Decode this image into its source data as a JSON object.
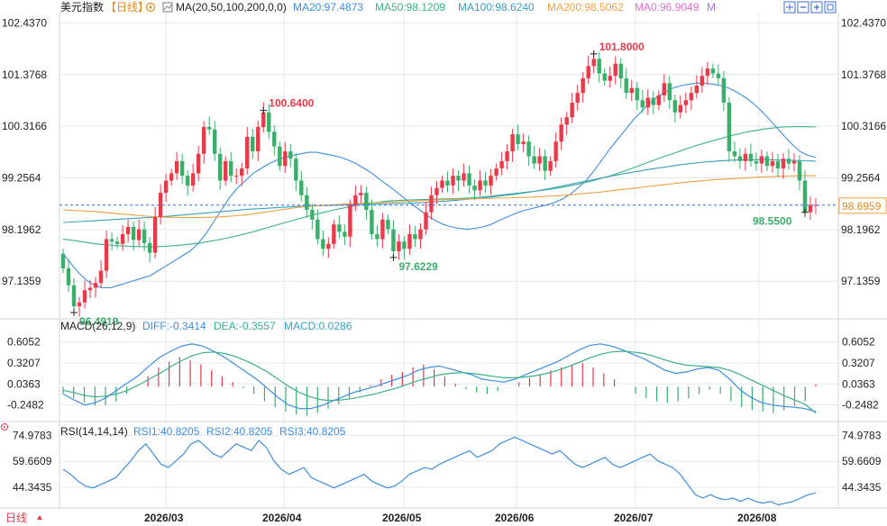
{
  "header": {
    "title": "美元指数",
    "period_tag": "【日线】",
    "ma_label": "MA(20,50,100,200,0,0)",
    "ma_items": [
      {
        "label": "MA20:97.4873",
        "color": "#3d8ee0"
      },
      {
        "label": "MA50:98.1209",
        "color": "#3ab08a"
      },
      {
        "label": "MA100:98.6240",
        "color": "#3aa0c0"
      },
      {
        "label": "MA200:98.5062",
        "color": "#f0a040"
      },
      {
        "label": "MA0:96.9049",
        "color": "#e070d0"
      },
      {
        "label": "M",
        "color": "#b070e0"
      }
    ],
    "tool_icons": [
      "crosshair-icon",
      "minus-icon",
      "plus-icon",
      "fit-icon"
    ]
  },
  "colors": {
    "up": "#e83a4a",
    "down": "#3aae6a",
    "ma20": "#3d8ee0",
    "ma50": "#3ab08a",
    "ma100": "#3aa0c0",
    "ma200": "#f0a040",
    "diff": "#3d8ee0",
    "dea": "#3ab08a",
    "rsi": "#3d8ee0",
    "grid": "#e4e8ee"
  },
  "main_axis": {
    "ticks": [
      "102.4370",
      "101.3768",
      "100.3166",
      "99.2564",
      "98.1962",
      "97.1359"
    ],
    "current_price": "98.6959"
  },
  "annotations": [
    {
      "text": "100.6400",
      "type": "high"
    },
    {
      "text": "101.8000",
      "type": "high"
    },
    {
      "text": "96.4919",
      "type": "low"
    },
    {
      "text": "97.6229",
      "type": "low"
    },
    {
      "text": "98.5500",
      "type": "low"
    }
  ],
  "macd": {
    "label": "MACD(26,12,9)",
    "diff": "DIFF:-0.3414",
    "dea": "DEA:-0.3557",
    "macd": "MACD:0.0286",
    "ticks": [
      "0.6052",
      "0.3207",
      "0.0363",
      "-0.2482"
    ]
  },
  "rsi": {
    "label": "RSI(14,14,14)",
    "rsi1": "RSI1:40.8205",
    "rsi2": "RSI2:40.8205",
    "rsi3": "RSI3:40.8205",
    "ticks": [
      "74.9783",
      "59.6609",
      "44.3435"
    ]
  },
  "footer": {
    "period_button": "日线",
    "months": [
      "2026/03",
      "2026/04",
      "2026/05",
      "2026/06",
      "2026/07",
      "2026/08"
    ]
  },
  "chart_data": {
    "type": "candlestick",
    "x_range": [
      "2026/02",
      "2026/08"
    ],
    "ylim": [
      96.4,
      102.5
    ],
    "closes": [
      97.4,
      97.05,
      96.62,
      96.7,
      96.95,
      97.0,
      97.1,
      97.35,
      98.0,
      97.95,
      97.9,
      98.1,
      98.25,
      97.98,
      98.2,
      97.92,
      97.72,
      98.45,
      98.95,
      99.2,
      99.35,
      99.6,
      99.3,
      99.1,
      99.35,
      99.75,
      100.3,
      100.25,
      99.75,
      99.2,
      99.6,
      99.3,
      99.3,
      99.45,
      100.1,
      99.8,
      100.3,
      100.6,
      100.2,
      99.9,
      99.5,
      99.8,
      99.65,
      99.2,
      98.9,
      98.6,
      98.4,
      98.0,
      97.8,
      97.9,
      98.3,
      98.15,
      98.05,
      98.7,
      98.9,
      98.95,
      98.6,
      98.1,
      98.0,
      98.4,
      98.2,
      97.75,
      97.95,
      97.8,
      98.1,
      98.0,
      98.2,
      98.55,
      98.9,
      99.05,
      99.2,
      99.1,
      99.3,
      99.2,
      99.35,
      99.1,
      99.0,
      99.2,
      99.1,
      99.3,
      99.45,
      99.6,
      99.8,
      100.15,
      99.95,
      100.0,
      99.7,
      99.55,
      99.7,
      99.4,
      99.6,
      100.0,
      100.35,
      100.5,
      100.8,
      101.0,
      101.3,
      101.55,
      101.7,
      101.4,
      101.25,
      101.35,
      101.6,
      101.3,
      101.0,
      101.1,
      100.85,
      100.7,
      100.9,
      100.75,
      100.95,
      101.2,
      100.85,
      100.6,
      100.75,
      100.85,
      101.0,
      101.15,
      101.35,
      101.5,
      101.4,
      101.3,
      100.8,
      99.8,
      99.7,
      99.6,
      99.75,
      99.6,
      99.55,
      99.7,
      99.5,
      99.6,
      99.45,
      99.65,
      99.55,
      99.6,
      99.2,
      98.55,
      98.7,
      98.7
    ],
    "ma20": [
      97.7,
      97.5,
      97.3,
      97.15,
      97.05,
      97.0,
      97.0,
      97.05,
      97.1,
      97.15,
      97.2,
      97.25,
      97.35,
      97.45,
      97.55,
      97.65,
      97.75,
      97.9,
      98.1,
      98.35,
      98.6,
      98.85,
      99.05,
      99.2,
      99.35,
      99.45,
      99.55,
      99.62,
      99.68,
      99.72,
      99.75,
      99.78,
      99.78,
      99.75,
      99.72,
      99.68,
      99.62,
      99.55,
      99.45,
      99.35,
      99.22,
      99.1,
      98.98,
      98.85,
      98.72,
      98.6,
      98.48,
      98.38,
      98.3,
      98.25,
      98.22,
      98.2,
      98.22,
      98.25,
      98.3,
      98.38,
      98.45,
      98.52,
      98.58,
      98.62,
      98.66,
      98.7,
      98.75,
      98.82,
      98.92,
      99.05,
      99.2,
      99.4,
      99.62,
      99.85,
      100.05,
      100.25,
      100.45,
      100.62,
      100.78,
      100.92,
      101.02,
      101.1,
      101.15,
      101.18,
      101.2,
      101.2,
      101.18,
      101.15,
      101.1,
      101.02,
      100.92,
      100.8,
      100.65,
      100.48,
      100.3,
      100.12,
      99.95,
      99.8,
      99.72,
      99.68
    ],
    "ma50": [
      98.0,
      97.95,
      97.9,
      97.87,
      97.85,
      97.84,
      97.85,
      97.88,
      97.92,
      97.98,
      98.05,
      98.14,
      98.24,
      98.34,
      98.44,
      98.53,
      98.61,
      98.68,
      98.74,
      98.78,
      98.8,
      98.81,
      98.82,
      98.83,
      98.85,
      98.88,
      98.92,
      98.96,
      99.0,
      99.05,
      99.12,
      99.2,
      99.3,
      99.42,
      99.55,
      99.68,
      99.8,
      99.92,
      100.02,
      100.12,
      100.2,
      100.26,
      100.3,
      100.31,
      100.3
    ],
    "ma100": [
      98.34,
      98.36,
      98.38,
      98.4,
      98.42,
      98.44,
      98.46,
      98.49,
      98.52,
      98.55,
      98.58,
      98.61,
      98.63,
      98.65,
      98.67,
      98.68,
      98.69,
      98.7,
      98.71,
      98.72,
      98.73,
      98.74,
      98.76,
      98.78,
      98.81,
      98.84,
      98.88,
      98.92,
      98.97,
      99.03,
      99.1,
      99.17,
      99.24,
      99.31,
      99.37,
      99.43,
      99.48,
      99.53,
      99.57,
      99.6,
      99.62,
      99.63,
      99.63,
      99.62,
      99.61,
      99.6
    ],
    "ma200": [
      98.6,
      98.58,
      98.56,
      98.53,
      98.5,
      98.47,
      98.45,
      98.44,
      98.44,
      98.45,
      98.47,
      98.5,
      98.55,
      98.6,
      98.65,
      98.68,
      98.7,
      98.72,
      98.74,
      98.75,
      98.76,
      98.78,
      98.8,
      98.81,
      98.82,
      98.83,
      98.84,
      98.85,
      98.86,
      98.88,
      98.9,
      98.93,
      98.96,
      99.0,
      99.04,
      99.08,
      99.12,
      99.16,
      99.19,
      99.22,
      99.24,
      99.26,
      99.28,
      99.29,
      99.3,
      99.3
    ],
    "macd_range": [
      -0.45,
      0.7
    ],
    "macd_diff": [
      -0.1,
      -0.18,
      -0.25,
      -0.22,
      -0.15,
      -0.05,
      0.05,
      0.15,
      0.28,
      0.4,
      0.48,
      0.55,
      0.58,
      0.55,
      0.48,
      0.4,
      0.3,
      0.2,
      0.1,
      -0.02,
      -0.15,
      -0.25,
      -0.3,
      -0.3,
      -0.26,
      -0.2,
      -0.14,
      -0.08,
      -0.04,
      0.0,
      0.05,
      0.1,
      0.15,
      0.22,
      0.26,
      0.28,
      0.24,
      0.2,
      0.16,
      0.1,
      0.08,
      0.06,
      0.1,
      0.16,
      0.22,
      0.28,
      0.34,
      0.42,
      0.5,
      0.56,
      0.58,
      0.55,
      0.5,
      0.44,
      0.38,
      0.3,
      0.22,
      0.18,
      0.2,
      0.24,
      0.26,
      0.22,
      0.1,
      -0.05,
      -0.15,
      -0.22,
      -0.25,
      -0.27,
      -0.28,
      -0.3,
      -0.34
    ],
    "macd_dea": [
      -0.05,
      -0.08,
      -0.12,
      -0.14,
      -0.13,
      -0.1,
      -0.05,
      0.02,
      0.1,
      0.18,
      0.27,
      0.35,
      0.42,
      0.46,
      0.47,
      0.45,
      0.41,
      0.35,
      0.28,
      0.2,
      0.1,
      0.0,
      -0.08,
      -0.14,
      -0.18,
      -0.19,
      -0.18,
      -0.16,
      -0.13,
      -0.1,
      -0.06,
      -0.02,
      0.03,
      0.08,
      0.12,
      0.16,
      0.18,
      0.19,
      0.18,
      0.16,
      0.14,
      0.12,
      0.12,
      0.13,
      0.15,
      0.18,
      0.22,
      0.27,
      0.33,
      0.39,
      0.44,
      0.47,
      0.48,
      0.47,
      0.45,
      0.41,
      0.36,
      0.32,
      0.29,
      0.28,
      0.27,
      0.26,
      0.22,
      0.16,
      0.09,
      0.02,
      -0.05,
      -0.12,
      -0.18,
      -0.24,
      -0.36
    ],
    "macd_hist": [
      -0.1,
      -0.16,
      -0.22,
      -0.26,
      -0.25,
      -0.2,
      -0.1,
      0.0,
      0.14,
      0.26,
      0.34,
      0.4,
      0.36,
      0.3,
      0.22,
      0.14,
      0.06,
      -0.02,
      -0.1,
      -0.2,
      -0.28,
      -0.34,
      -0.38,
      -0.4,
      -0.36,
      -0.3,
      -0.24,
      -0.16,
      -0.08,
      0.02,
      0.1,
      0.16,
      0.2,
      0.26,
      0.3,
      0.24,
      0.14,
      0.04,
      -0.04,
      -0.08,
      -0.1,
      -0.06,
      0.0,
      0.06,
      0.12,
      0.16,
      0.22,
      0.26,
      0.3,
      0.32,
      0.26,
      0.18,
      0.1,
      0.0,
      -0.1,
      -0.16,
      -0.2,
      -0.22,
      -0.2,
      -0.16,
      -0.1,
      -0.04,
      -0.1,
      -0.2,
      -0.28,
      -0.32,
      -0.34,
      -0.36,
      -0.32,
      -0.26,
      -0.2,
      0.03
    ],
    "rsi_range": [
      30,
      80
    ],
    "rsi_values": [
      55,
      52,
      48,
      45,
      44,
      46,
      48,
      50,
      55,
      60,
      66,
      70,
      64,
      58,
      56,
      60,
      64,
      70,
      72,
      68,
      64,
      62,
      66,
      70,
      68,
      66,
      72,
      68,
      60,
      55,
      52,
      54,
      56,
      50,
      48,
      46,
      44,
      46,
      48,
      50,
      52,
      48,
      46,
      44,
      45,
      48,
      52,
      54,
      56,
      55,
      58,
      60,
      62,
      64,
      66,
      62,
      64,
      66,
      70,
      72,
      74,
      72,
      70,
      68,
      66,
      64,
      66,
      62,
      58,
      56,
      58,
      60,
      62,
      58,
      56,
      58,
      60,
      62,
      64,
      60,
      58,
      56,
      52,
      46,
      40,
      38,
      40,
      38,
      37,
      38,
      36,
      38,
      36,
      35,
      36,
      34,
      35,
      36,
      38,
      40,
      41
    ]
  }
}
